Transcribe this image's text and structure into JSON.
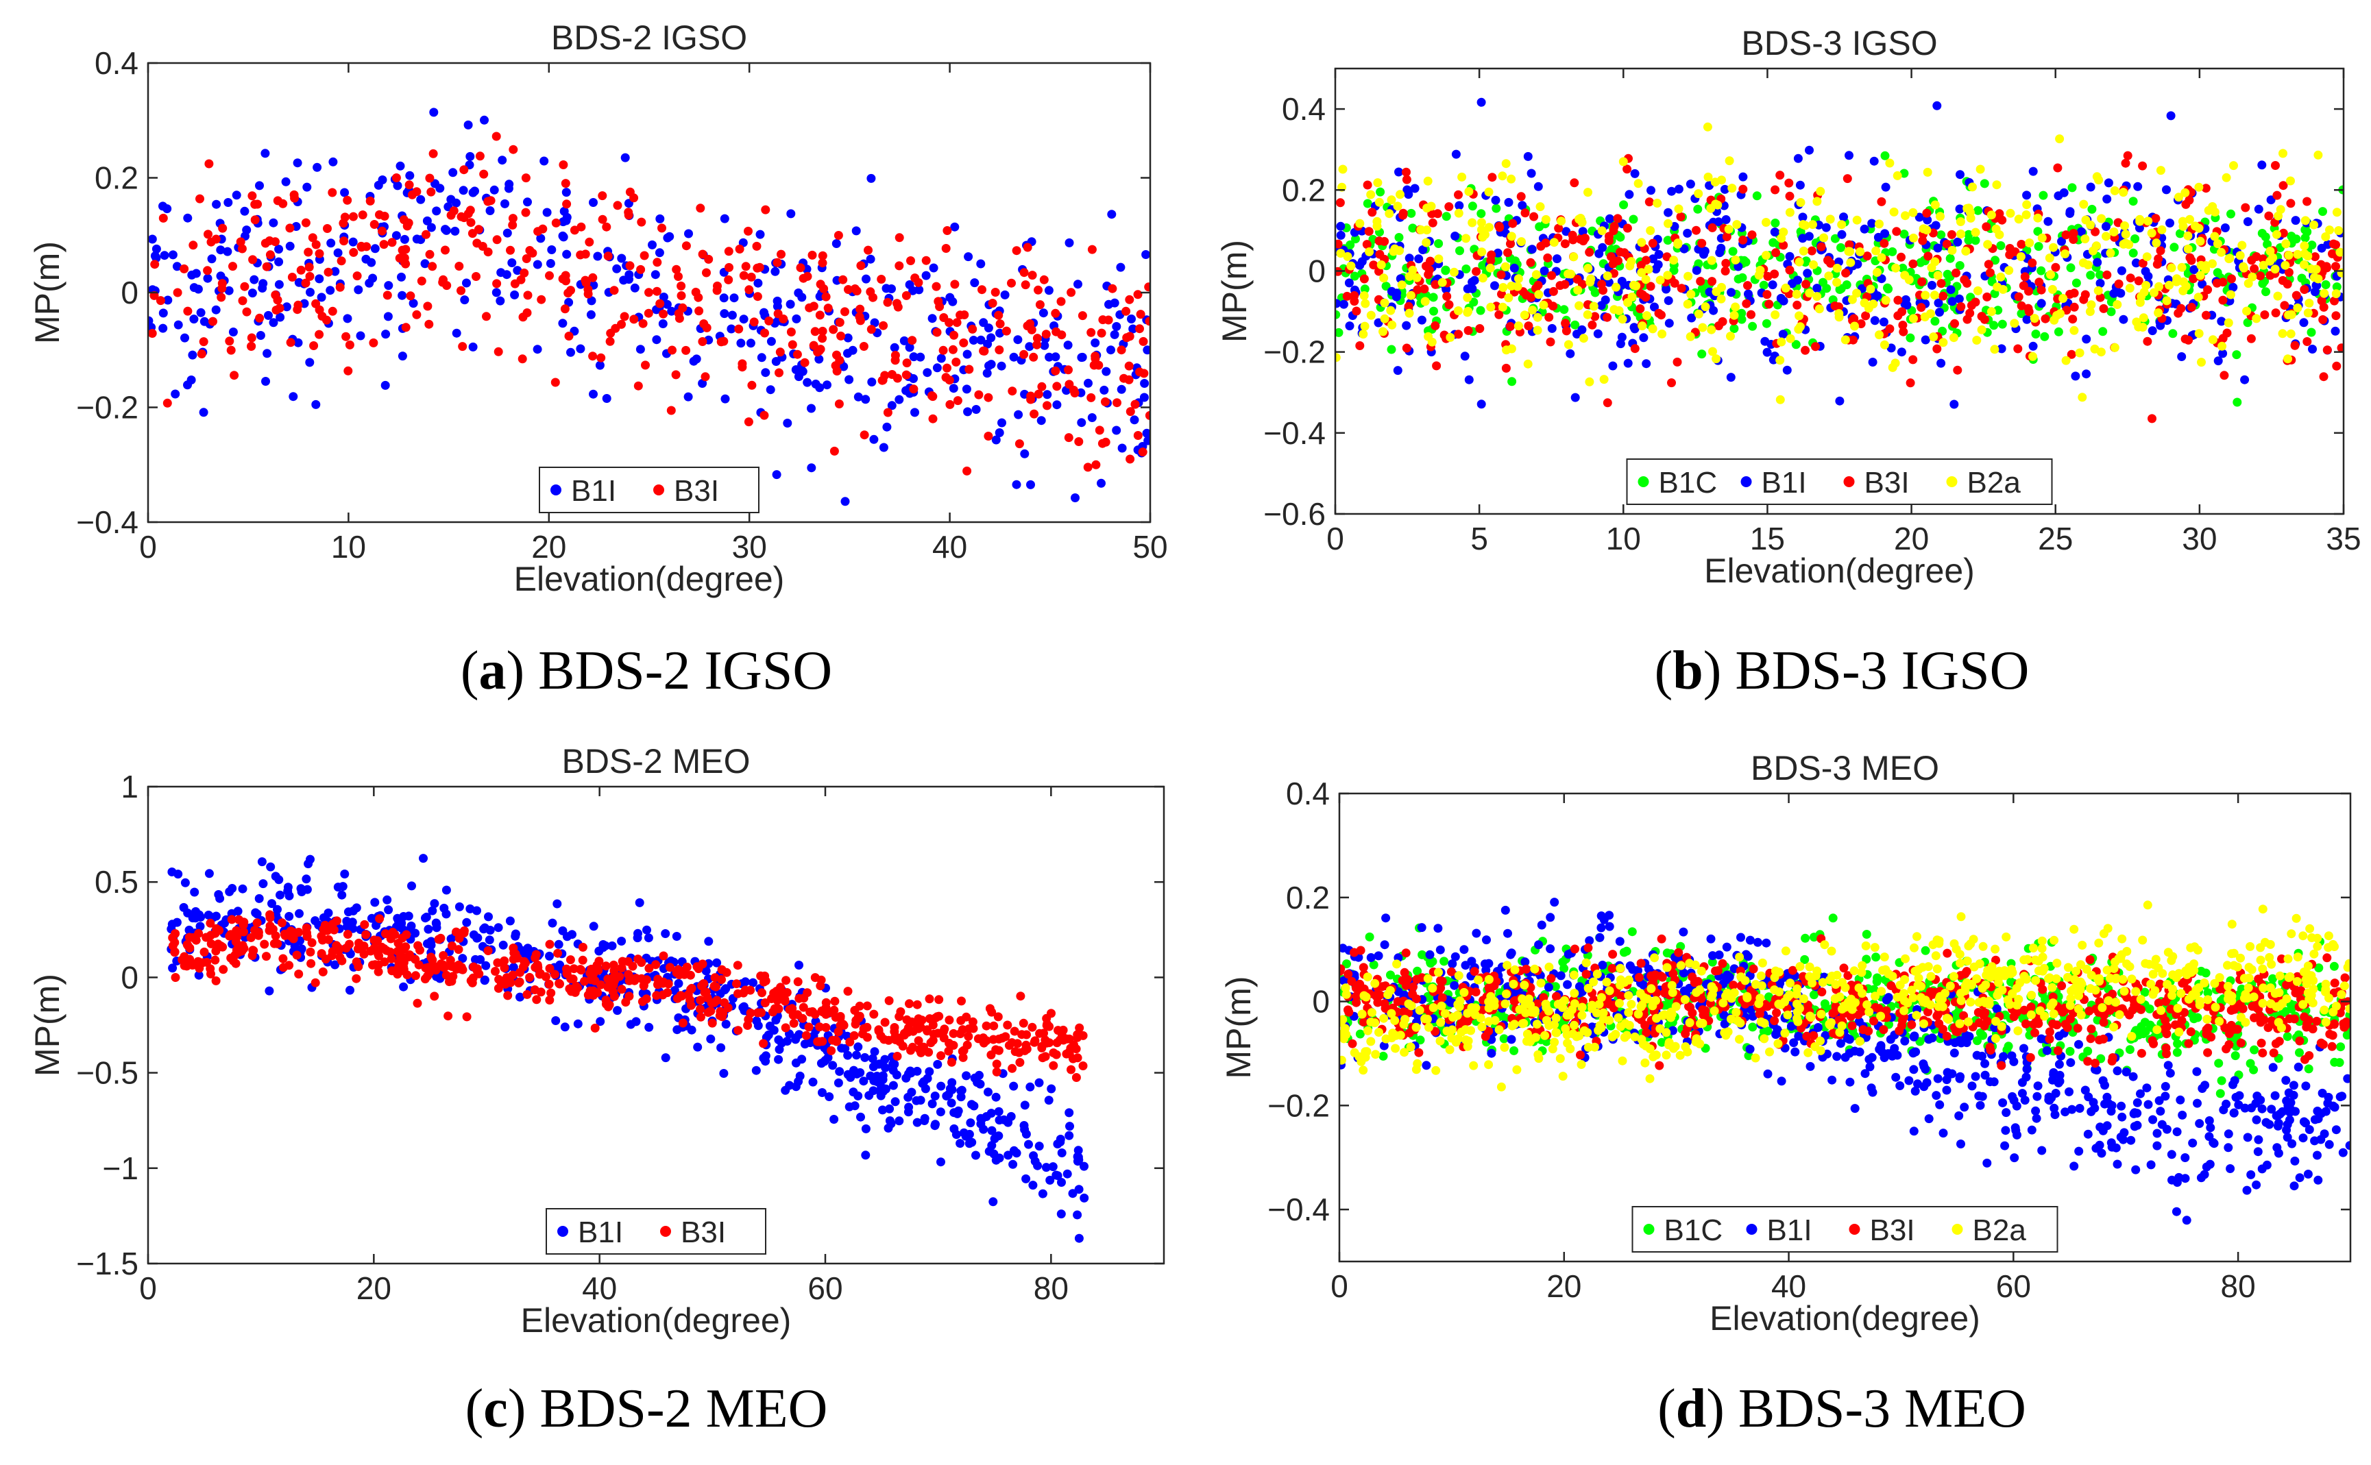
{
  "panels": [
    {
      "id": "a",
      "title": "BDS-2 IGSO",
      "caption_letter": "a",
      "caption_text": "BDS-2 IGSO",
      "chart_data": {
        "type": "scatter",
        "title": "BDS-2 IGSO",
        "xlabel": "Elevation(degree)",
        "ylabel": "MP(m)",
        "xlim": [
          0,
          50
        ],
        "ylim": [
          -0.4,
          0.4
        ],
        "xticks": [
          0,
          10,
          20,
          30,
          40,
          50
        ],
        "yticks": [
          -0.4,
          -0.2,
          0,
          0.2,
          0.4
        ],
        "legend_position": "bottom-center",
        "series": [
          {
            "name": "B1I",
            "color": "#0000ff",
            "points_estimated": 480,
            "trend": [
              [
                0,
                0.0
              ],
              [
                15,
                0.1
              ],
              [
                30,
                -0.05
              ],
              [
                50,
                -0.15
              ]
            ],
            "spread": 0.1
          },
          {
            "name": "B3I",
            "color": "#ff0000",
            "points_estimated": 480,
            "trend": [
              [
                0,
                0.0
              ],
              [
                15,
                0.1
              ],
              [
                30,
                -0.03
              ],
              [
                50,
                -0.12
              ]
            ],
            "spread": 0.09
          }
        ]
      }
    },
    {
      "id": "b",
      "title": "BDS-3 IGSO",
      "caption_letter": "b",
      "caption_text": "BDS-3 IGSO",
      "chart_data": {
        "type": "scatter",
        "title": "BDS-3 IGSO",
        "xlabel": "Elevation(degree)",
        "ylabel": "MP(m)",
        "xlim": [
          0,
          35
        ],
        "ylim": [
          -0.6,
          0.5
        ],
        "xticks": [
          0,
          5,
          10,
          15,
          20,
          25,
          30,
          35
        ],
        "yticks": [
          -0.6,
          -0.4,
          -0.2,
          0,
          0.2,
          0.4
        ],
        "legend_position": "bottom-center",
        "series": [
          {
            "name": "B1C",
            "color": "#00ff00",
            "points_estimated": 450,
            "trend": [
              [
                0,
                0.0
              ],
              [
                35,
                0.0
              ]
            ],
            "spread": 0.09
          },
          {
            "name": "B1I",
            "color": "#0000ff",
            "points_estimated": 450,
            "trend": [
              [
                0,
                0.0
              ],
              [
                35,
                0.0
              ]
            ],
            "spread": 0.13
          },
          {
            "name": "B3I",
            "color": "#ff0000",
            "points_estimated": 450,
            "trend": [
              [
                0,
                0.0
              ],
              [
                35,
                -0.02
              ]
            ],
            "spread": 0.12
          },
          {
            "name": "B2a",
            "color": "#ffff00",
            "points_estimated": 450,
            "trend": [
              [
                0,
                0.0
              ],
              [
                35,
                0.02
              ]
            ],
            "spread": 0.12
          }
        ]
      }
    },
    {
      "id": "c",
      "title": "BDS-2 MEO",
      "caption_letter": "c",
      "caption_text": "BDS-2 MEO",
      "chart_data": {
        "type": "scatter",
        "title": "BDS-2 MEO",
        "xlabel": "Elevation(degree)",
        "ylabel": "MP(m)",
        "xlim": [
          0,
          90
        ],
        "ylim": [
          -1.5,
          1
        ],
        "xticks": [
          0,
          20,
          40,
          60,
          80
        ],
        "yticks": [
          -1.5,
          -1,
          -0.5,
          0,
          0.5,
          1
        ],
        "legend_position": "bottom-center",
        "series": [
          {
            "name": "B1I",
            "color": "#0000ff",
            "points_estimated": 650,
            "trend": [
              [
                2,
                0.3
              ],
              [
                10,
                0.35
              ],
              [
                30,
                0.15
              ],
              [
                45,
                0.0
              ],
              [
                60,
                -0.45
              ],
              [
                70,
                -0.65
              ],
              [
                83,
                -1.05
              ]
            ],
            "spread": 0.14
          },
          {
            "name": "B3I",
            "color": "#ff0000",
            "points_estimated": 650,
            "trend": [
              [
                2,
                0.1
              ],
              [
                10,
                0.2
              ],
              [
                30,
                0.05
              ],
              [
                45,
                -0.02
              ],
              [
                60,
                -0.22
              ],
              [
                70,
                -0.3
              ],
              [
                83,
                -0.35
              ]
            ],
            "spread": 0.08
          }
        ]
      }
    },
    {
      "id": "d",
      "title": "BDS-3 MEO",
      "caption_letter": "d",
      "caption_text": "BDS-3 MEO",
      "chart_data": {
        "type": "scatter",
        "title": "BDS-3 MEO",
        "xlabel": "Elevation(degree)",
        "ylabel": "MP(m)",
        "xlim": [
          0,
          90
        ],
        "ylim": [
          -0.5,
          0.4
        ],
        "xticks": [
          0,
          20,
          40,
          60,
          80
        ],
        "yticks": [
          -0.4,
          -0.2,
          0,
          0.2,
          0.4
        ],
        "legend_position": "bottom-center",
        "series": [
          {
            "name": "B1C",
            "color": "#00ff00",
            "points_estimated": 700,
            "trend": [
              [
                0,
                0.0
              ],
              [
                40,
                0.0
              ],
              [
                60,
                -0.02
              ],
              [
                90,
                -0.03
              ]
            ],
            "spread": 0.05
          },
          {
            "name": "B1I",
            "color": "#0000ff",
            "points_estimated": 700,
            "trend": [
              [
                0,
                0.02
              ],
              [
                35,
                0.03
              ],
              [
                45,
                -0.08
              ],
              [
                60,
                -0.15
              ],
              [
                75,
                -0.25
              ],
              [
                90,
                -0.22
              ]
            ],
            "spread": 0.06
          },
          {
            "name": "B3I",
            "color": "#ff0000",
            "points_estimated": 700,
            "trend": [
              [
                0,
                0.0
              ],
              [
                40,
                0.0
              ],
              [
                90,
                -0.02
              ]
            ],
            "spread": 0.04
          },
          {
            "name": "B2a",
            "color": "#ffff00",
            "points_estimated": 700,
            "trend": [
              [
                0,
                -0.05
              ],
              [
                30,
                -0.02
              ],
              [
                50,
                0.03
              ],
              [
                90,
                0.05
              ]
            ],
            "spread": 0.05
          }
        ]
      }
    }
  ]
}
